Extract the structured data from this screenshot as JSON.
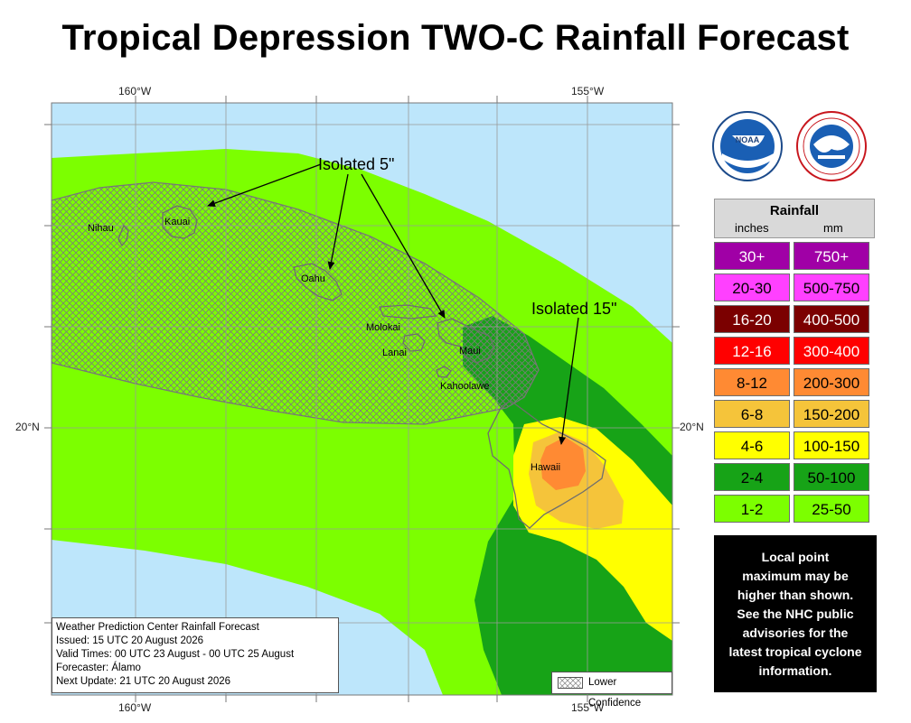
{
  "title": "Tropical Depression TWO-C Rainfall Forecast",
  "coords": {
    "lon_160": "160°W",
    "lon_155": "155°W",
    "lat_20": "20°N"
  },
  "islands": [
    "Nihau",
    "Kauai",
    "Oahu",
    "Molokai",
    "Lanai",
    "Maui",
    "Kahoolawe",
    "Hawaii"
  ],
  "annotations": {
    "isolated_5": "Isolated 5\"",
    "isolated_15": "Isolated 15\""
  },
  "logos": {
    "noaa_text": "NOAA",
    "nws_ring_text": "NATIONAL WEATHER SERVICE"
  },
  "legend": {
    "title": "Rainfall",
    "unit_in": "inches",
    "unit_mm": "mm",
    "rows": [
      {
        "in": "30+",
        "mm": "750+",
        "color": "#a000a6",
        "text_color": "#ffffff"
      },
      {
        "in": "20-30",
        "mm": "500-750",
        "color": "#ff40ff",
        "text_color": "#000000"
      },
      {
        "in": "16-20",
        "mm": "400-500",
        "color": "#7b0000",
        "text_color": "#ffffff"
      },
      {
        "in": "12-16",
        "mm": "300-400",
        "color": "#ff0000",
        "text_color": "#ffffff"
      },
      {
        "in": "8-12",
        "mm": "200-300",
        "color": "#ff8a33",
        "text_color": "#000000"
      },
      {
        "in": "6-8",
        "mm": "150-200",
        "color": "#f5c43a",
        "text_color": "#000000"
      },
      {
        "in": "4-6",
        "mm": "100-150",
        "color": "#ffff00",
        "text_color": "#000000"
      },
      {
        "in": "2-4",
        "mm": "50-100",
        "color": "#17a317",
        "text_color": "#000000"
      },
      {
        "in": "1-2",
        "mm": "25-50",
        "color": "#7cff00",
        "text_color": "#000000"
      }
    ]
  },
  "note": [
    "Local point",
    "maximum may be",
    "higher than shown.",
    "See the NHC public",
    "advisories for the",
    "latest tropical cyclone",
    "information."
  ],
  "info": {
    "line1": "Weather Prediction Center Rainfall Forecast",
    "line2": "Issued: 15 UTC 20 August 2026",
    "line3": "Valid Times: 00 UTC 23 August - 00 UTC 25 August",
    "line4": "Forecaster: Álamo",
    "line5": "Next Update: 21 UTC 20 August 2026"
  },
  "lower_confidence_label": "Lower Confidence",
  "colors": {
    "ocean": "#bde6fb",
    "band_1_2": "#7cff00",
    "band_2_4": "#17a317",
    "band_4_6": "#ffff00",
    "band_6_8": "#f5c43a",
    "band_8_12": "#ff8a33",
    "land_outline": "#6e6e6e",
    "hatch": "#777777"
  }
}
